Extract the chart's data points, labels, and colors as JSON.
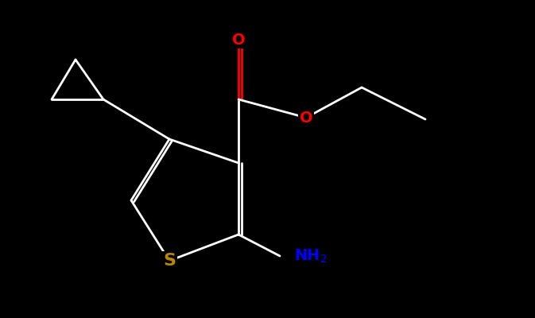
{
  "bg_color": "#000000",
  "bond_color": "#ffffff",
  "lw": 2.0,
  "atom_colors": {
    "O": "#ff0000",
    "S": "#b8860b",
    "N": "#0000ff",
    "C": "#ffffff"
  },
  "font_size": 14,
  "font_weight": "bold"
}
